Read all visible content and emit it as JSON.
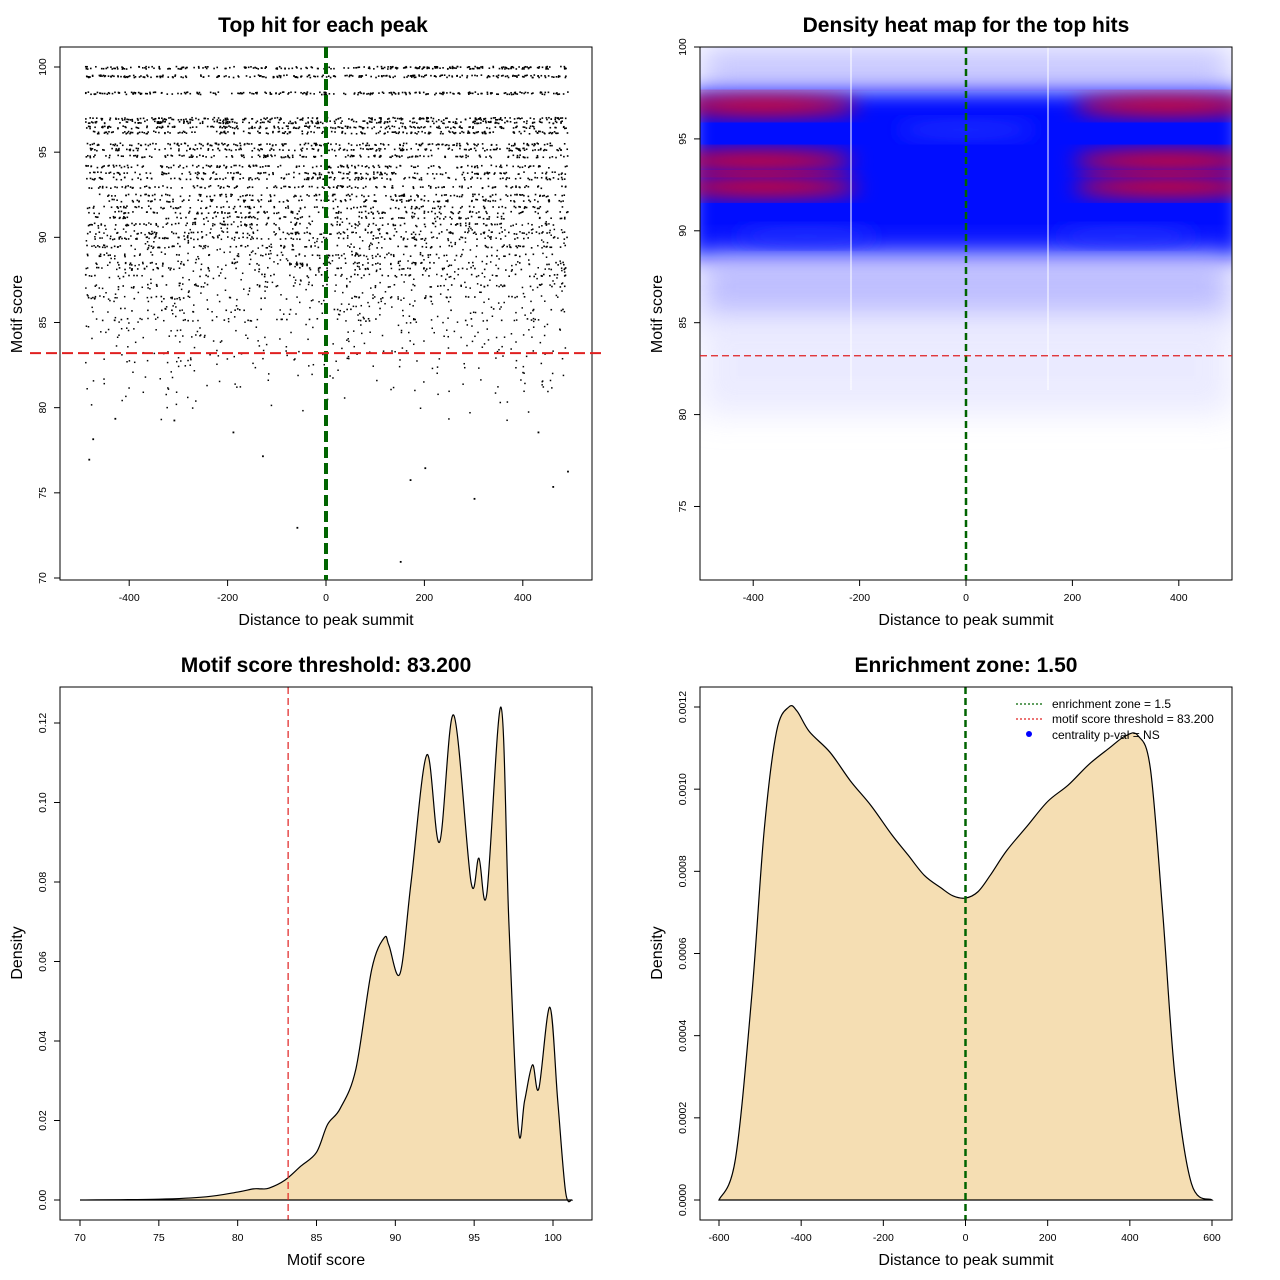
{
  "chart_data": [
    {
      "type": "scatter",
      "title": "Top hit for each peak",
      "xlabel": "Distance to peak summit",
      "ylabel": "Motif score",
      "xlim": [
        -500,
        500
      ],
      "ylim": [
        70,
        100
      ],
      "xticks": [
        "-400",
        "-200",
        "0",
        "200",
        "400"
      ],
      "yticks": [
        "70",
        "75",
        "80",
        "85",
        "90",
        "95",
        "100"
      ],
      "reference_lines": [
        {
          "axis": "x",
          "value": 0,
          "color": "#006400",
          "style": "dashed"
        },
        {
          "axis": "y",
          "value": 83.2,
          "color": "#e02020",
          "style": "dashed"
        }
      ],
      "point_color": "#000000",
      "score_bands": [
        100.0,
        99.5,
        98.5,
        97.0,
        96.8,
        96.5,
        96.2,
        95.5,
        95.2,
        94.8,
        94.2,
        93.8,
        93.5,
        93.0,
        92.5,
        92.2,
        91.8,
        91.5,
        91.2,
        90.8,
        90.3,
        90.0,
        89.5,
        89.0,
        88.5,
        88.2,
        87.8,
        87.2,
        86.5,
        85.8,
        85.2
      ],
      "outliers": [
        {
          "x": -483,
          "y": 77.0
        },
        {
          "x": -475,
          "y": 78.2
        },
        {
          "x": -430,
          "y": 79.4
        },
        {
          "x": -310,
          "y": 79.3
        },
        {
          "x": -190,
          "y": 78.6
        },
        {
          "x": -130,
          "y": 77.2
        },
        {
          "x": -60,
          "y": 73.0
        },
        {
          "x": 150,
          "y": 71.0
        },
        {
          "x": 170,
          "y": 75.8
        },
        {
          "x": 200,
          "y": 76.5
        },
        {
          "x": 300,
          "y": 74.7
        },
        {
          "x": 430,
          "y": 78.6
        },
        {
          "x": 460,
          "y": 75.4
        },
        {
          "x": 490,
          "y": 76.3
        }
      ]
    },
    {
      "type": "heatmap",
      "title": "Density heat map for the top hits",
      "xlabel": "Distance to peak summit",
      "ylabel": "Motif score",
      "xlim": [
        -500,
        500
      ],
      "ylim": [
        71,
        100
      ],
      "xticks": [
        "-400",
        "-200",
        "0",
        "200",
        "400"
      ],
      "yticks": [
        "75",
        "80",
        "85",
        "90",
        "95",
        "100"
      ],
      "color_scale": [
        "#ffffff",
        "#0000ff",
        "#ff0000"
      ],
      "hotspots": [
        {
          "x": -380,
          "y": 96.8,
          "level": "high"
        },
        {
          "x": 380,
          "y": 96.8,
          "level": "high"
        },
        {
          "x": -390,
          "y": 93.8,
          "level": "high"
        },
        {
          "x": 380,
          "y": 93.8,
          "level": "high"
        },
        {
          "x": -380,
          "y": 92.4,
          "level": "high"
        },
        {
          "x": 380,
          "y": 92.4,
          "level": "high"
        },
        {
          "x": 0,
          "y": 95.5,
          "level": "medium"
        },
        {
          "x": -300,
          "y": 89.7,
          "level": "medium"
        },
        {
          "x": 300,
          "y": 89.7,
          "level": "medium"
        }
      ],
      "reference_lines": [
        {
          "axis": "x",
          "value": 0,
          "color": "#006400",
          "style": "dashed"
        },
        {
          "axis": "y",
          "value": 83.2,
          "color": "#e02020",
          "style": "dashed"
        }
      ]
    },
    {
      "type": "area",
      "title": "Motif score threshold: 83.200",
      "xlabel": "Motif score",
      "ylabel": "Density",
      "xlim": [
        69,
        102
      ],
      "ylim": [
        -0.004,
        0.126
      ],
      "xticks": [
        "70",
        "75",
        "80",
        "85",
        "90",
        "95",
        "100"
      ],
      "yticks": [
        "0.00",
        "0.02",
        "0.04",
        "0.06",
        "0.08",
        "0.10",
        "0.12"
      ],
      "fill_color": "#f5deb3",
      "x": [
        70,
        75,
        78,
        80,
        81,
        81.5,
        82,
        83,
        84,
        85,
        85.7,
        86.5,
        87.5,
        88.5,
        89.3,
        89.6,
        90.3,
        91,
        92,
        92.8,
        93.7,
        94.8,
        95.3,
        95.8,
        96.7,
        97.2,
        97.8,
        98.2,
        98.7,
        99.1,
        99.8,
        100.3,
        100.8,
        101.2
      ],
      "y": [
        0.0,
        0.0002,
        0.0008,
        0.002,
        0.0028,
        0.0028,
        0.003,
        0.005,
        0.0085,
        0.012,
        0.019,
        0.023,
        0.033,
        0.058,
        0.066,
        0.064,
        0.057,
        0.08,
        0.112,
        0.09,
        0.122,
        0.08,
        0.086,
        0.077,
        0.124,
        0.07,
        0.018,
        0.025,
        0.034,
        0.028,
        0.0485,
        0.025,
        0.002,
        0.0
      ],
      "threshold": {
        "value": 83.2,
        "color": "#e02020",
        "style": "dashed"
      }
    },
    {
      "type": "area",
      "title": "Enrichment zone: 1.50",
      "xlabel": "Distance to peak summit",
      "ylabel": "Density",
      "xlim": [
        -630,
        630
      ],
      "ylim": [
        -3e-05,
        0.00125
      ],
      "xticks": [
        "-600",
        "-400",
        "-200",
        "0",
        "200",
        "400",
        "600"
      ],
      "yticks": [
        "0.0000",
        "0.0002",
        "0.0004",
        "0.0006",
        "0.0008",
        "0.0010",
        "0.0012"
      ],
      "fill_color": "#f5deb3",
      "x": [
        -600,
        -560,
        -520,
        -490,
        -460,
        -430,
        -410,
        -380,
        -330,
        -280,
        -230,
        -180,
        -140,
        -100,
        -60,
        -30,
        0,
        30,
        60,
        100,
        150,
        200,
        250,
        300,
        350,
        390,
        420,
        450,
        480,
        510,
        550,
        600
      ],
      "y": [
        0.0,
        0.0001,
        0.0005,
        0.0009,
        0.00114,
        0.0012,
        0.00119,
        0.00114,
        0.00109,
        0.00102,
        0.00096,
        0.00089,
        0.00084,
        0.00079,
        0.00076,
        0.00074,
        0.000735,
        0.00075,
        0.00079,
        0.00085,
        0.00091,
        0.00097,
        0.00101,
        0.00106,
        0.0011,
        0.00113,
        0.00113,
        0.00105,
        0.0007,
        0.0003,
        4e-05,
        0.0
      ],
      "reference_lines": [
        {
          "axis": "x",
          "value": 0,
          "color": "#006400",
          "style": "dashed"
        }
      ],
      "legend": {
        "position": "top-right",
        "items": [
          {
            "label": "enrichment zone = 1.5",
            "color": "#006400",
            "style": "dotted"
          },
          {
            "label": "motif score threshold = 83.200",
            "color": "#e02020",
            "style": "dotted"
          },
          {
            "label": "centrality p-val = NS",
            "color": "#0000ff",
            "style": "point"
          }
        ]
      }
    }
  ]
}
